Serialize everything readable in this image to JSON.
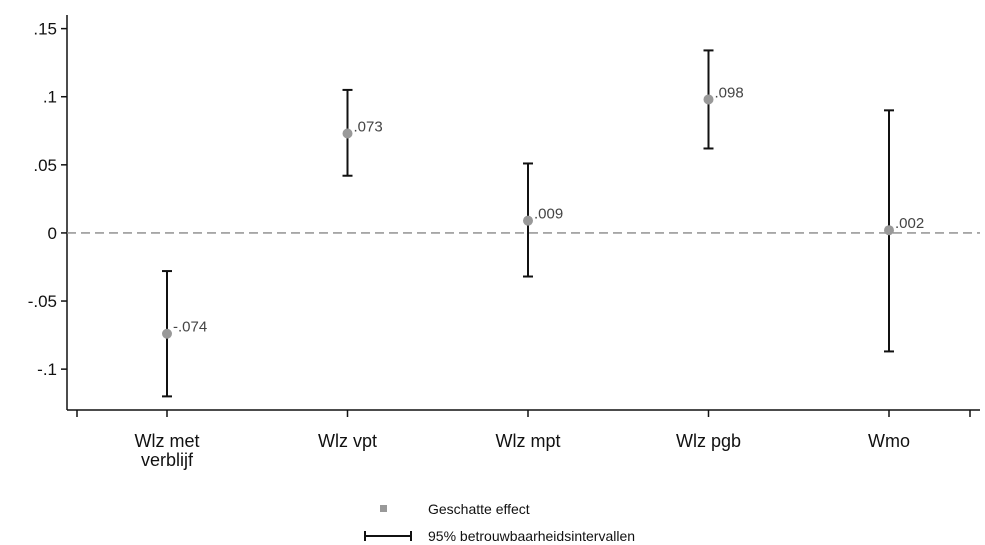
{
  "chart_data": {
    "type": "scatter",
    "title": "",
    "xlabel": "",
    "ylabel": "",
    "categories": [
      [
        "Wlz met",
        "verblijf"
      ],
      [
        "Wlz vpt"
      ],
      [
        "Wlz mpt"
      ],
      [
        "Wlz pgb"
      ],
      [
        "Wmo"
      ]
    ],
    "estimates": [
      -0.074,
      0.073,
      0.009,
      0.098,
      0.002
    ],
    "ci_lower": [
      -0.12,
      0.042,
      -0.032,
      0.062,
      -0.087
    ],
    "ci_upper": [
      -0.028,
      0.105,
      0.051,
      0.134,
      0.09
    ],
    "data_labels": [
      "-.074",
      ".073",
      ".009",
      ".098",
      ".002"
    ],
    "ylim": [
      -0.13,
      0.16
    ],
    "yticks": [
      -0.1,
      -0.05,
      0,
      0.05,
      0.1,
      0.15
    ],
    "ytick_labels": [
      "-.1",
      "-.05",
      "0",
      ".05",
      ".1",
      ".15"
    ],
    "reference_line": 0,
    "grid": false,
    "legend": {
      "placement": "bottom",
      "entries": [
        "Geschatte effect",
        "95% betrouwbaarheidsintervallen"
      ]
    },
    "colors": {
      "point": "#999999",
      "ci": "#111111",
      "reference": "#888888"
    }
  }
}
